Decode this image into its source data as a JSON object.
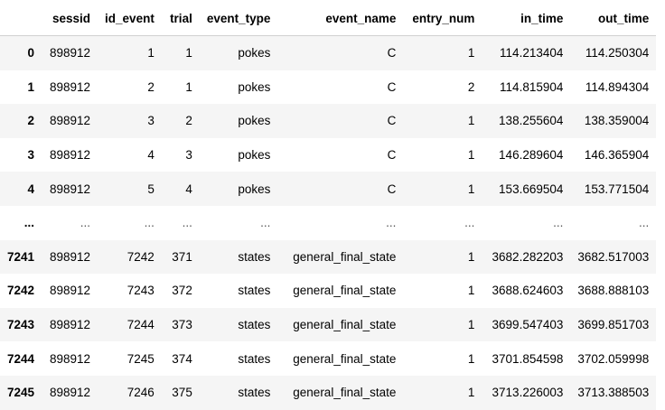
{
  "table": {
    "columns": [
      "",
      "sessid",
      "id_event",
      "trial",
      "event_type",
      "event_name",
      "entry_num",
      "in_time",
      "out_time"
    ],
    "rows": [
      {
        "index": "0",
        "cells": [
          "898912",
          "1",
          "1",
          "pokes",
          "C",
          "1",
          "114.213404",
          "114.250304"
        ]
      },
      {
        "index": "1",
        "cells": [
          "898912",
          "2",
          "1",
          "pokes",
          "C",
          "2",
          "114.815904",
          "114.894304"
        ]
      },
      {
        "index": "2",
        "cells": [
          "898912",
          "3",
          "2",
          "pokes",
          "C",
          "1",
          "138.255604",
          "138.359004"
        ]
      },
      {
        "index": "3",
        "cells": [
          "898912",
          "4",
          "3",
          "pokes",
          "C",
          "1",
          "146.289604",
          "146.365904"
        ]
      },
      {
        "index": "4",
        "cells": [
          "898912",
          "5",
          "4",
          "pokes",
          "C",
          "1",
          "153.669504",
          "153.771504"
        ]
      },
      {
        "index": "...",
        "cells": [
          "...",
          "...",
          "...",
          "...",
          "...",
          "...",
          "...",
          "..."
        ]
      },
      {
        "index": "7241",
        "cells": [
          "898912",
          "7242",
          "371",
          "states",
          "general_final_state",
          "1",
          "3682.282203",
          "3682.517003"
        ]
      },
      {
        "index": "7242",
        "cells": [
          "898912",
          "7243",
          "372",
          "states",
          "general_final_state",
          "1",
          "3688.624603",
          "3688.888103"
        ]
      },
      {
        "index": "7243",
        "cells": [
          "898912",
          "7244",
          "373",
          "states",
          "general_final_state",
          "1",
          "3699.547403",
          "3699.851703"
        ]
      },
      {
        "index": "7244",
        "cells": [
          "898912",
          "7245",
          "374",
          "states",
          "general_final_state",
          "1",
          "3701.854598",
          "3702.059998"
        ]
      },
      {
        "index": "7245",
        "cells": [
          "898912",
          "7246",
          "375",
          "states",
          "general_final_state",
          "1",
          "3713.226003",
          "3713.388503"
        ]
      }
    ]
  }
}
